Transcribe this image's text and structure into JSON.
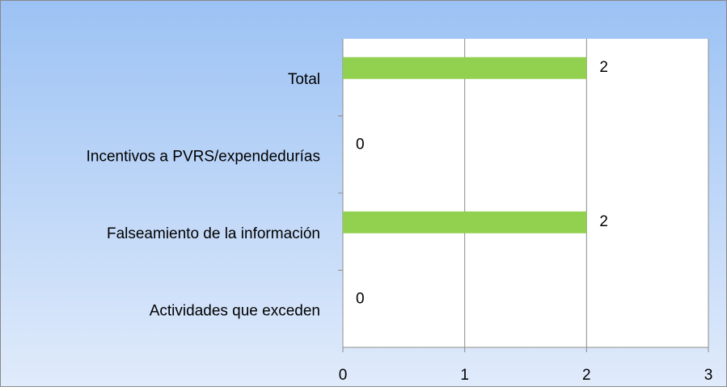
{
  "chart_data": {
    "type": "bar",
    "orientation": "horizontal",
    "categories": [
      "Total",
      "Incentivos a PVRS/expendedurías",
      "Falseamiento de la información",
      "Actividades que exceden"
    ],
    "values": [
      2,
      0,
      2,
      0
    ],
    "color": "#92d050",
    "xlim": [
      0,
      3
    ],
    "xticks": [
      0,
      1,
      2,
      3
    ],
    "grid": true
  }
}
